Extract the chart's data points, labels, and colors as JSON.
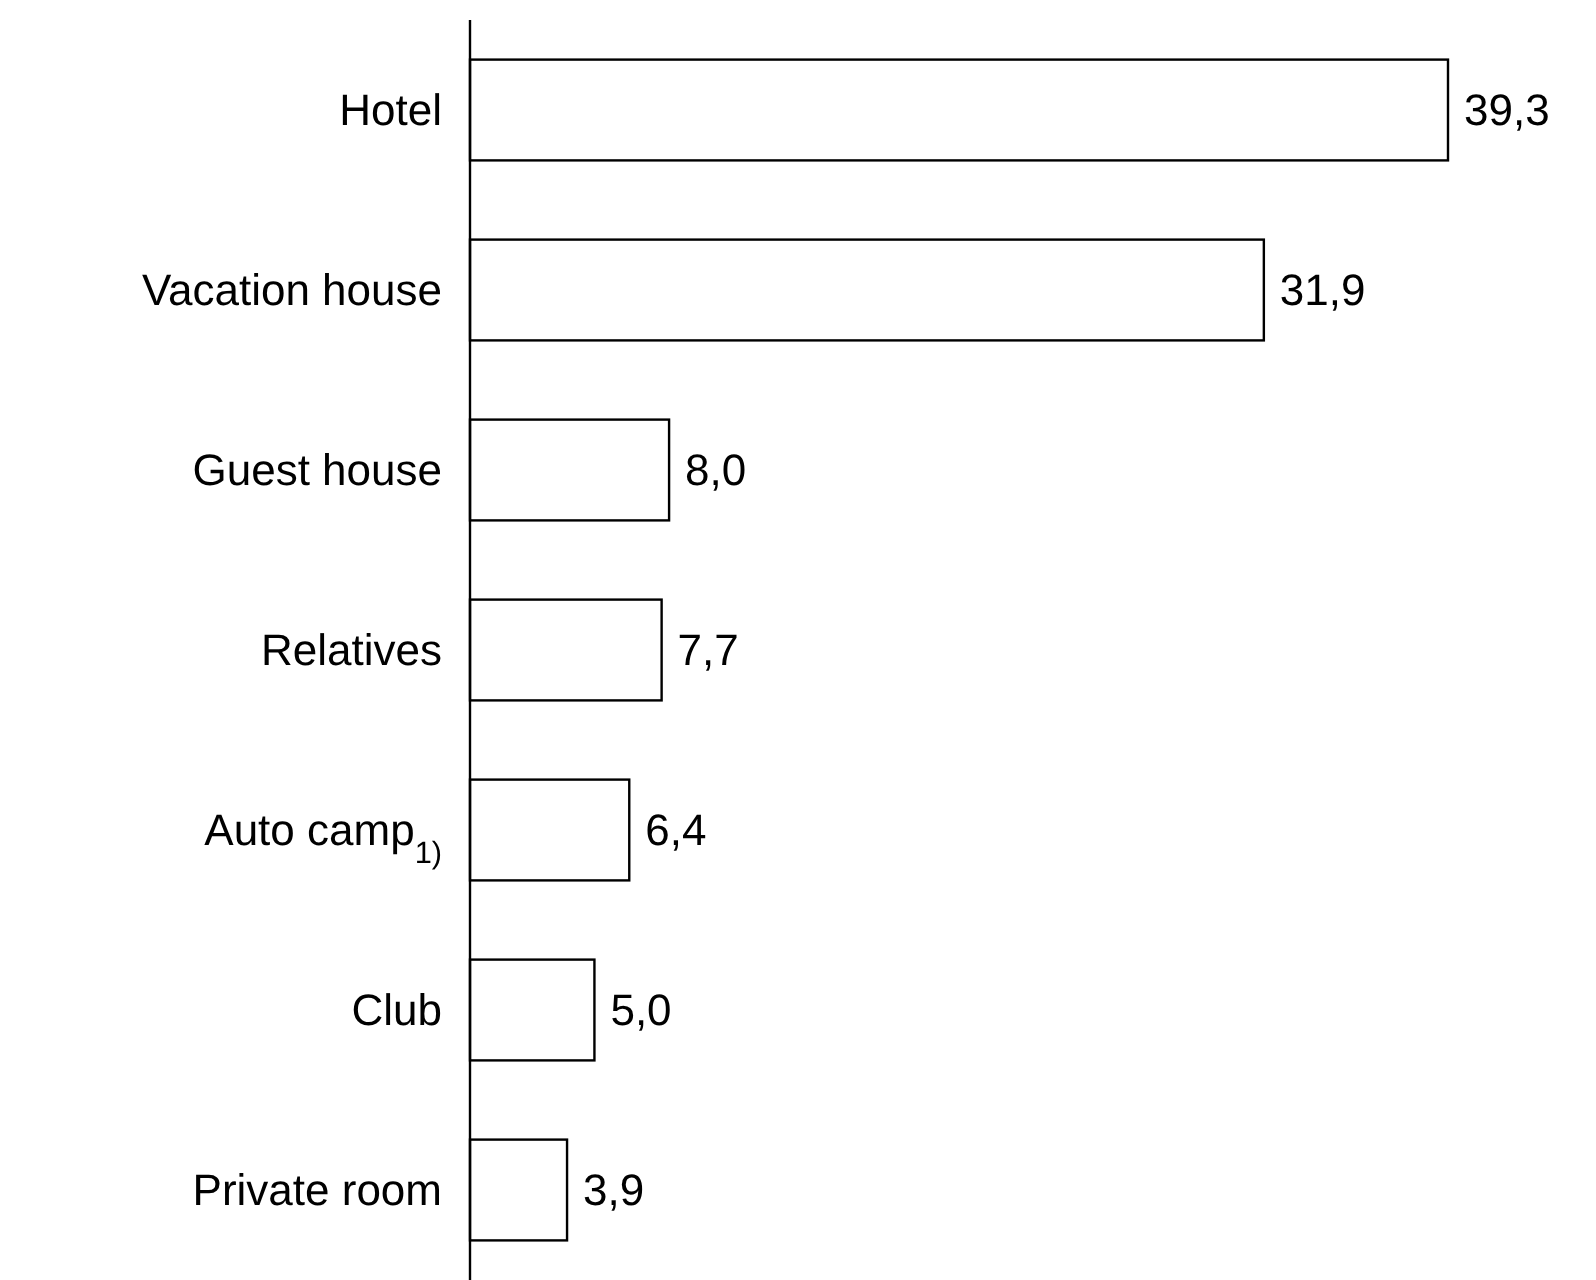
{
  "chart_data": {
    "type": "bar",
    "orientation": "horizontal",
    "categories": [
      "Hotel",
      "Vacation house",
      "Guest house",
      "Relatives",
      "Auto camp$_{1)}$",
      "Club",
      "Private room"
    ],
    "values": [
      39.3,
      31.9,
      8.0,
      7.7,
      6.4,
      5.0,
      3.9
    ],
    "value_labels": [
      "39,3",
      "31,9",
      "8,0",
      "7,7",
      "6,4",
      "5,0",
      "3,9"
    ],
    "color": "#ffffff"
  }
}
